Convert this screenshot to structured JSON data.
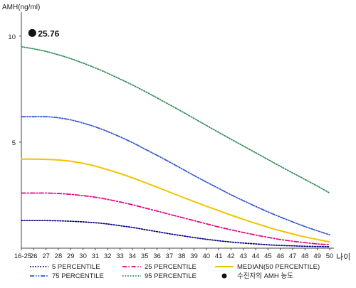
{
  "chart_data": {
    "type": "line",
    "ylabel": "AMH(ng/ml)",
    "xlabel": "나이",
    "y_ticks": [
      "5",
      "10"
    ],
    "ylim": [
      0,
      11
    ],
    "categories": [
      "16-25",
      "26",
      "27",
      "28",
      "29",
      "30",
      "31",
      "32",
      "33",
      "34",
      "35",
      "36",
      "37",
      "38",
      "39",
      "40",
      "41",
      "42",
      "43",
      "44",
      "45",
      "46",
      "47",
      "48",
      "49",
      "50"
    ],
    "series": [
      {
        "name": "5 PERCENTILE",
        "color": "#000080",
        "dash": "dotted",
        "values": [
          1.3,
          1.3,
          1.3,
          1.29,
          1.27,
          1.24,
          1.2,
          1.14,
          1.06,
          0.98,
          0.88,
          0.78,
          0.68,
          0.59,
          0.5,
          0.42,
          0.35,
          0.29,
          0.24,
          0.2,
          0.16,
          0.13,
          0.11,
          0.09,
          0.08,
          0.07
        ]
      },
      {
        "name": "25 PERCENTILE",
        "color": "#e6007e",
        "dash": "dashdot",
        "values": [
          2.6,
          2.6,
          2.6,
          2.58,
          2.54,
          2.48,
          2.4,
          2.3,
          2.18,
          2.05,
          1.9,
          1.75,
          1.6,
          1.45,
          1.3,
          1.15,
          1.0,
          0.87,
          0.74,
          0.62,
          0.51,
          0.41,
          0.33,
          0.26,
          0.2,
          0.16
        ]
      },
      {
        "name": "MEDIAN(50 PERCENTILE)",
        "color": "#f2c400",
        "dash": "solid",
        "values": [
          4.2,
          4.2,
          4.19,
          4.16,
          4.1,
          4.0,
          3.87,
          3.7,
          3.52,
          3.32,
          3.1,
          2.88,
          2.65,
          2.42,
          2.2,
          1.98,
          1.77,
          1.56,
          1.36,
          1.17,
          0.99,
          0.82,
          0.67,
          0.53,
          0.41,
          0.3
        ]
      },
      {
        "name": "75 PERCENTILE",
        "color": "#3355cc",
        "dash": "dashdotdot",
        "values": [
          6.2,
          6.2,
          6.2,
          6.15,
          6.05,
          5.9,
          5.72,
          5.5,
          5.25,
          4.98,
          4.68,
          4.38,
          4.07,
          3.75,
          3.43,
          3.12,
          2.82,
          2.52,
          2.24,
          1.97,
          1.71,
          1.47,
          1.24,
          1.02,
          0.82,
          0.63
        ]
      },
      {
        "name": "95 PERCENTILE",
        "color": "#2e8b57",
        "dash": "dotted",
        "values": [
          9.5,
          9.4,
          9.28,
          9.12,
          8.94,
          8.73,
          8.5,
          8.25,
          7.98,
          7.7,
          7.4,
          7.09,
          6.77,
          6.45,
          6.12,
          5.79,
          5.46,
          5.14,
          4.82,
          4.5,
          4.18,
          3.86,
          3.55,
          3.24,
          2.93,
          2.6
        ]
      }
    ],
    "marker": {
      "name": "수진자의 AMH 농도",
      "value": 25.76,
      "label": "25.76",
      "display_y": 10.15,
      "category_index": 1
    },
    "legend_order": [
      "5 PERCENTILE",
      "25 PERCENTILE",
      "MEDIAN(50 PERCENTILE)",
      "75 PERCENTILE",
      "95 PERCENTILE",
      "수진자의 AMH 농도"
    ],
    "legend_placement": "bottom",
    "grid": false
  }
}
